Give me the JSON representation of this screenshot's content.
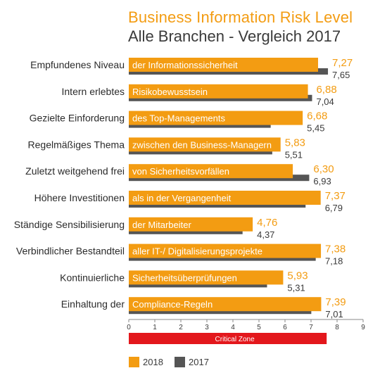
{
  "title": "Business Information Risk Level",
  "subtitle": "Alle Branchen - Vergleich 2017",
  "colors": {
    "y2018": "#f39c12",
    "y2017": "#555555",
    "critical": "#e3171c"
  },
  "critical_zone": {
    "label": "Critical Zone",
    "range": [
      0,
      7.6
    ]
  },
  "legend": [
    {
      "label": "2018",
      "color": "#f39c12"
    },
    {
      "label": "2017",
      "color": "#555555"
    }
  ],
  "chart_data": {
    "type": "bar",
    "orientation": "horizontal",
    "xlim": [
      0,
      9
    ],
    "xticks": [
      "0",
      "1",
      "2",
      "3",
      "4",
      "5",
      "6",
      "7",
      "8",
      "9"
    ],
    "categories": [
      {
        "label": "Empfundenes Niveau",
        "bar_text": "der Informationssicherheit"
      },
      {
        "label": "Intern erlebtes",
        "bar_text": "Risikobewusstsein"
      },
      {
        "label": "Gezielte Einforderung",
        "bar_text": "des Top-Managements"
      },
      {
        "label": "Regelmäßiges Thema",
        "bar_text": "zwischen den Business-Managern"
      },
      {
        "label": "Zuletzt weitgehend frei",
        "bar_text": "von Sicherheitsvorfällen"
      },
      {
        "label": "Höhere Investitionen",
        "bar_text": "als in der Vergangenheit"
      },
      {
        "label": "Ständige Sensibilisierung",
        "bar_text": "der Mitarbeiter"
      },
      {
        "label": "Verbindlicher Bestandteil",
        "bar_text": "aller IT-/ Digitalisierungsprojekte"
      },
      {
        "label": "Kontinuierliche",
        "bar_text": "Sicherheitsüberprüfungen"
      },
      {
        "label": "Einhaltung der",
        "bar_text": "Compliance-Regeln"
      }
    ],
    "series": [
      {
        "name": "2018",
        "values": [
          7.27,
          6.88,
          6.68,
          5.83,
          6.3,
          7.37,
          4.76,
          7.38,
          5.93,
          7.39
        ],
        "labels": [
          "7,27",
          "6,88",
          "6,68",
          "5,83",
          "6,30",
          "7,37",
          "4,76",
          "7,38",
          "5,93",
          "7,39"
        ]
      },
      {
        "name": "2017",
        "values": [
          7.65,
          7.04,
          5.45,
          5.51,
          6.93,
          6.79,
          4.37,
          7.18,
          5.31,
          7.01
        ],
        "labels": [
          "7,65",
          "7,04",
          "5,45",
          "5,51",
          "6,93",
          "6,79",
          "4,37",
          "7,18",
          "5,31",
          "7,01"
        ]
      }
    ]
  }
}
